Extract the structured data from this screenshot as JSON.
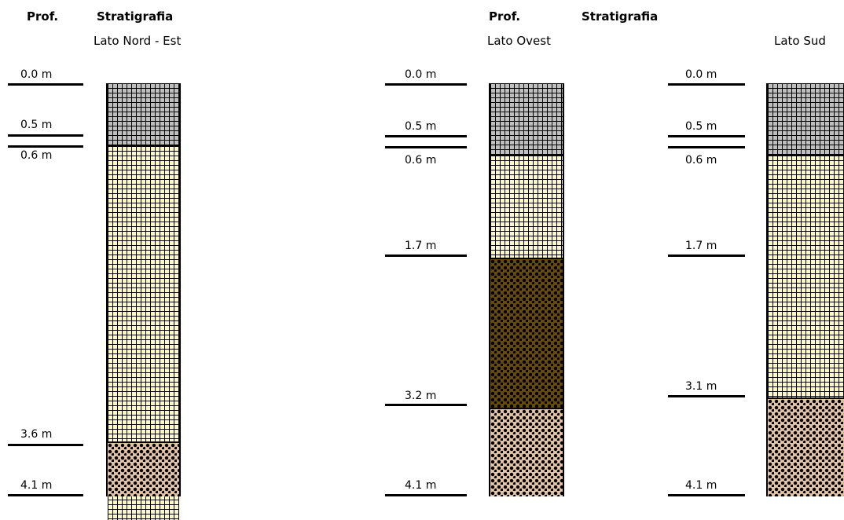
{
  "headers": {
    "depth": "Prof.",
    "strat": "Stratigrafia"
  },
  "sides": [
    {
      "title": "Lato Nord - Est",
      "d0": "0.0 m",
      "d1": "0.5 m",
      "d2": "0.6 m",
      "d3": "3.6 m",
      "d4": "4.1 m"
    },
    {
      "title": "Lato Ovest",
      "d0": "0.0 m",
      "d1": "0.5 m",
      "d2": "0.6 m",
      "d3": "1.7 m",
      "d4": "3.2 m",
      "d5": "4.1 m"
    },
    {
      "title": "Lato Sud",
      "d0": "0.0 m",
      "d1": "0.5 m",
      "d2": "0.6 m",
      "d3": "1.7 m",
      "d4": "3.1 m",
      "d5": "4.1 m"
    }
  ],
  "colors": {
    "gray_layer": "#bfbfbf",
    "sand_layer": "#fff9c8",
    "brown_layer": "#6b4a10",
    "cobble_layer": "#e3c4a6"
  }
}
